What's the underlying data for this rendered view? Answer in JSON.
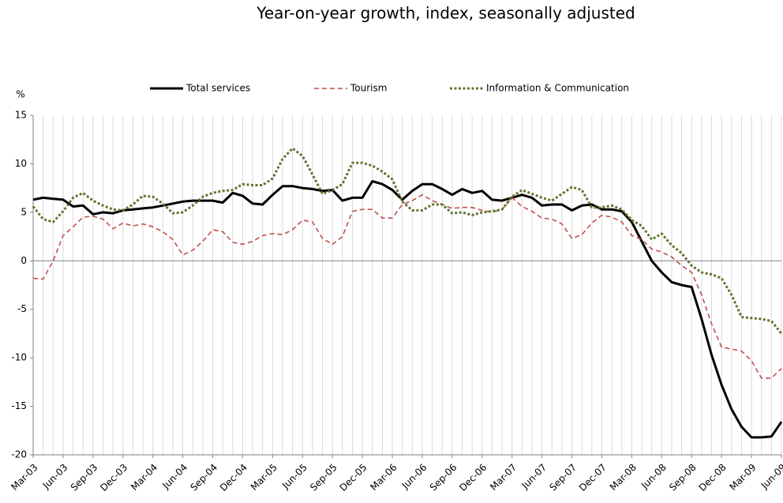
{
  "chart_data": {
    "type": "line",
    "title": "Year-on-year growth, index, seasonally adjusted",
    "y_label": "%",
    "legend": "top",
    "grid": "vertical",
    "categories": [
      "Mar-03",
      null,
      null,
      "Jun-03",
      null,
      null,
      "Sep-03",
      null,
      null,
      "Dec-03",
      null,
      null,
      "Mar-04",
      null,
      null,
      "Jun-04",
      null,
      null,
      "Sep-04",
      null,
      null,
      "Dec-04",
      null,
      null,
      "Mar-05",
      null,
      null,
      "Jun-05",
      null,
      null,
      "Sep-05",
      null,
      null,
      "Dec-05",
      null,
      null,
      "Mar-06",
      null,
      null,
      "Jun-06",
      null,
      null,
      "Sep-06",
      null,
      null,
      "Dec-06",
      null,
      null,
      "Mar-07",
      null,
      null,
      "Jun-07",
      null,
      null,
      "Sep-07",
      null,
      null,
      "Dec-07",
      null,
      null,
      "Mar-08",
      null,
      null,
      "Jun-08",
      null,
      null,
      "Sep-08",
      null,
      null,
      "Dec-08",
      null,
      null,
      "Mar-09",
      null,
      null,
      "Jun-09"
    ],
    "ylim": [
      -20,
      15
    ],
    "yticks": [
      -20,
      -15,
      -10,
      -5,
      0,
      5,
      10,
      15
    ],
    "series": [
      {
        "name": "Total services",
        "color": "#000000",
        "dash": "solid",
        "width": 3,
        "values": [
          6.3,
          6.5,
          6.4,
          6.3,
          5.6,
          5.7,
          4.8,
          5.0,
          4.9,
          5.2,
          5.3,
          5.4,
          5.5,
          5.7,
          5.9,
          6.1,
          6.2,
          6.2,
          6.2,
          6.0,
          7.0,
          6.7,
          5.9,
          5.8,
          6.8,
          7.7,
          7.7,
          7.5,
          7.4,
          7.2,
          7.3,
          6.2,
          6.5,
          6.5,
          8.2,
          7.9,
          7.3,
          6.3,
          7.2,
          7.9,
          7.9,
          7.4,
          6.8,
          7.4,
          7.0,
          7.2,
          6.3,
          6.2,
          6.5,
          6.8,
          6.5,
          5.7,
          5.8,
          5.8,
          5.2,
          5.7,
          5.8,
          5.3,
          5.3,
          5.1,
          4.0,
          2.0,
          0,
          -1.2,
          -2.2,
          -2.5,
          -2.7,
          -6,
          -9.7,
          -12.8,
          -15.3,
          -17.1,
          -18.2,
          -18.2,
          -18.1,
          -16.6
        ]
      },
      {
        "name": "Tourism",
        "color": "#c0504d",
        "dash": "dashed",
        "width": 1.6,
        "values": [
          -1.8,
          -1.9,
          0,
          2.6,
          3.5,
          4.5,
          4.6,
          4.3,
          3.3,
          3.9,
          3.6,
          3.8,
          3.5,
          3.0,
          2.2,
          0.6,
          1.1,
          2.0,
          3.2,
          3.0,
          1.9,
          1.7,
          2.0,
          2.6,
          2.8,
          2.7,
          3.2,
          4.2,
          4.0,
          2.3,
          1.7,
          2.5,
          5.1,
          5.3,
          5.3,
          4.4,
          4.4,
          5.8,
          6.2,
          6.8,
          6.2,
          5.8,
          5.4,
          5.5,
          5.5,
          5.2,
          5.0,
          5.3,
          6.5,
          5.6,
          5.1,
          4.4,
          4.3,
          3.8,
          2.3,
          2.7,
          3.9,
          4.7,
          4.5,
          4.0,
          2.6,
          2.2,
          1.2,
          0.9,
          0.4,
          -0.5,
          -1.2,
          -3.5,
          -6.5,
          -8.9,
          -9.1,
          -9.3,
          -10.3,
          -12.1,
          -12.1,
          -11.1
        ]
      },
      {
        "name": "Information & Communication",
        "color": "#5f7530",
        "dash": "dotted",
        "width": 3,
        "values": [
          5.6,
          4.3,
          4.0,
          5.1,
          6.5,
          7.0,
          6.2,
          5.7,
          5.3,
          5.2,
          5.8,
          6.7,
          6.6,
          5.9,
          4.9,
          5.0,
          5.7,
          6.6,
          7.0,
          7.2,
          7.3,
          7.9,
          7.8,
          7.8,
          8.5,
          10.5,
          11.6,
          10.8,
          8.9,
          6.9,
          7.3,
          7.9,
          10.1,
          10.1,
          9.8,
          9.2,
          8.4,
          6.1,
          5.2,
          5.2,
          5.8,
          5.8,
          4.9,
          5.0,
          4.7,
          5.0,
          5.1,
          5.3,
          6.6,
          7.3,
          6.9,
          6.5,
          6.2,
          6.9,
          7.6,
          7.3,
          5.5,
          5.5,
          5.7,
          5.3,
          4.2,
          3.6,
          2.2,
          2.8,
          1.6,
          0.8,
          -0.5,
          -1.2,
          -1.4,
          -1.8,
          -3.5,
          -5.8,
          -5.9,
          -6.0,
          -6.2,
          -7.5
        ]
      }
    ]
  }
}
